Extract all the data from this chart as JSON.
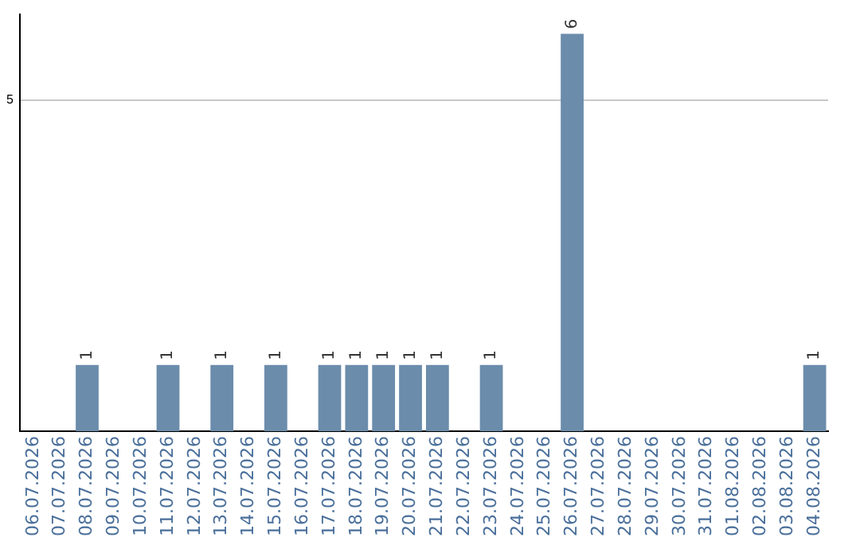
{
  "chart_data": {
    "type": "bar",
    "categories": [
      "06.07.2026",
      "07.07.2026",
      "08.07.2026",
      "09.07.2026",
      "10.07.2026",
      "11.07.2026",
      "12.07.2026",
      "13.07.2026",
      "14.07.2026",
      "15.07.2026",
      "16.07.2026",
      "17.07.2026",
      "18.07.2026",
      "19.07.2026",
      "20.07.2026",
      "21.07.2026",
      "22.07.2026",
      "23.07.2026",
      "24.07.2026",
      "25.07.2026",
      "26.07.2026",
      "27.07.2026",
      "28.07.2026",
      "29.07.2026",
      "30.07.2026",
      "31.07.2026",
      "01.08.2026",
      "02.08.2026",
      "03.08.2026",
      "04.08.2026"
    ],
    "values": [
      0,
      0,
      1,
      0,
      0,
      1,
      0,
      1,
      0,
      1,
      0,
      1,
      1,
      1,
      1,
      1,
      0,
      1,
      0,
      0,
      6,
      0,
      0,
      0,
      0,
      0,
      0,
      0,
      0,
      1
    ],
    "value_labels": [
      null,
      null,
      "1",
      null,
      null,
      "1",
      null,
      "1",
      null,
      "1",
      null,
      "1",
      "1",
      "1",
      "1",
      "1",
      null,
      "1",
      null,
      null,
      "6",
      null,
      null,
      null,
      null,
      null,
      null,
      null,
      null,
      "1"
    ],
    "color": "#6b8cab",
    "ylim": [
      0,
      6.3
    ],
    "yticks": [
      5
    ],
    "grid": "y",
    "legend": false
  }
}
